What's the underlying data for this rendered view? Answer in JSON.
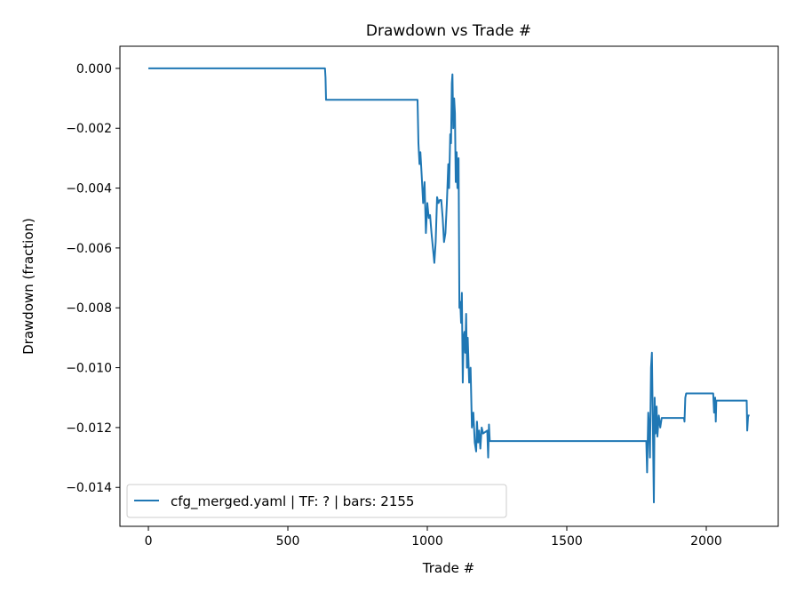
{
  "chart_data": {
    "type": "line",
    "title": "Drawdown vs Trade #",
    "xlabel": "Trade #",
    "ylabel": "Drawdown (fraction)",
    "xlim": [
      -102,
      2258
    ],
    "ylim": [
      -0.0153,
      0.00074
    ],
    "xticks": [
      0,
      500,
      1000,
      1500,
      2000
    ],
    "xtick_labels": [
      "0",
      "500",
      "1000",
      "1500",
      "2000"
    ],
    "yticks": [
      0,
      -0.002,
      -0.004,
      -0.006,
      -0.008,
      -0.01,
      -0.012,
      -0.014
    ],
    "ytick_labels": [
      "0.000",
      "−0.002",
      "−0.004",
      "−0.006",
      "−0.008",
      "−0.010",
      "−0.012",
      "−0.014"
    ],
    "grid": false,
    "legend_placement": "lower-left",
    "series": [
      {
        "name": "cfg_merged.yaml | TF: ? | bars: 2155",
        "color": "#1f77b4",
        "points": [
          [
            0,
            0
          ],
          [
            633,
            0
          ],
          [
            635,
            -0.0003
          ],
          [
            637,
            -0.00105
          ],
          [
            965,
            -0.00105
          ],
          [
            968,
            -0.0025
          ],
          [
            972,
            -0.0032
          ],
          [
            975,
            -0.0028
          ],
          [
            980,
            -0.0036
          ],
          [
            985,
            -0.0045
          ],
          [
            990,
            -0.0038
          ],
          [
            995,
            -0.0055
          ],
          [
            1000,
            -0.0045
          ],
          [
            1005,
            -0.005
          ],
          [
            1010,
            -0.0049
          ],
          [
            1015,
            -0.0055
          ],
          [
            1020,
            -0.006
          ],
          [
            1025,
            -0.0065
          ],
          [
            1030,
            -0.0058
          ],
          [
            1035,
            -0.0043
          ],
          [
            1040,
            -0.0045
          ],
          [
            1045,
            -0.0044
          ],
          [
            1050,
            -0.0044
          ],
          [
            1055,
            -0.005
          ],
          [
            1060,
            -0.0058
          ],
          [
            1065,
            -0.0055
          ],
          [
            1070,
            -0.0045
          ],
          [
            1075,
            -0.0032
          ],
          [
            1078,
            -0.004
          ],
          [
            1082,
            -0.0022
          ],
          [
            1085,
            -0.0025
          ],
          [
            1088,
            -0.0005
          ],
          [
            1090,
            -0.0002
          ],
          [
            1093,
            -0.002
          ],
          [
            1096,
            -0.001
          ],
          [
            1099,
            -0.0015
          ],
          [
            1102,
            -0.0038
          ],
          [
            1105,
            -0.0028
          ],
          [
            1108,
            -0.004
          ],
          [
            1112,
            -0.003
          ],
          [
            1115,
            -0.008
          ],
          [
            1118,
            -0.0078
          ],
          [
            1121,
            -0.0085
          ],
          [
            1124,
            -0.0075
          ],
          [
            1127,
            -0.0105
          ],
          [
            1130,
            -0.009
          ],
          [
            1133,
            -0.0088
          ],
          [
            1136,
            -0.0095
          ],
          [
            1139,
            -0.0082
          ],
          [
            1142,
            -0.01
          ],
          [
            1145,
            -0.009
          ],
          [
            1150,
            -0.0105
          ],
          [
            1155,
            -0.01
          ],
          [
            1160,
            -0.012
          ],
          [
            1165,
            -0.0115
          ],
          [
            1170,
            -0.0125
          ],
          [
            1175,
            -0.0128
          ],
          [
            1178,
            -0.0118
          ],
          [
            1182,
            -0.0125
          ],
          [
            1186,
            -0.0121
          ],
          [
            1190,
            -0.0127
          ],
          [
            1195,
            -0.012
          ],
          [
            1200,
            -0.0122
          ],
          [
            1215,
            -0.0121
          ],
          [
            1218,
            -0.013
          ],
          [
            1221,
            -0.0119
          ],
          [
            1224,
            -0.01245
          ],
          [
            1785,
            -0.01245
          ],
          [
            1788,
            -0.0135
          ],
          [
            1792,
            -0.0115
          ],
          [
            1795,
            -0.012
          ],
          [
            1798,
            -0.013
          ],
          [
            1802,
            -0.01
          ],
          [
            1805,
            -0.0095
          ],
          [
            1808,
            -0.0115
          ],
          [
            1812,
            -0.0145
          ],
          [
            1815,
            -0.011
          ],
          [
            1818,
            -0.0122
          ],
          [
            1822,
            -0.0113
          ],
          [
            1825,
            -0.0123
          ],
          [
            1830,
            -0.0116
          ],
          [
            1835,
            -0.012
          ],
          [
            1840,
            -0.01168
          ],
          [
            1920,
            -0.01168
          ],
          [
            1922,
            -0.0118
          ],
          [
            1925,
            -0.011
          ],
          [
            1928,
            -0.01086
          ],
          [
            2025,
            -0.01086
          ],
          [
            2028,
            -0.0115
          ],
          [
            2032,
            -0.011
          ],
          [
            2034,
            -0.0118
          ],
          [
            2036,
            -0.0111
          ],
          [
            2145,
            -0.0111
          ],
          [
            2147,
            -0.0121
          ],
          [
            2150,
            -0.0116
          ],
          [
            2155,
            -0.0116
          ]
        ]
      }
    ]
  }
}
